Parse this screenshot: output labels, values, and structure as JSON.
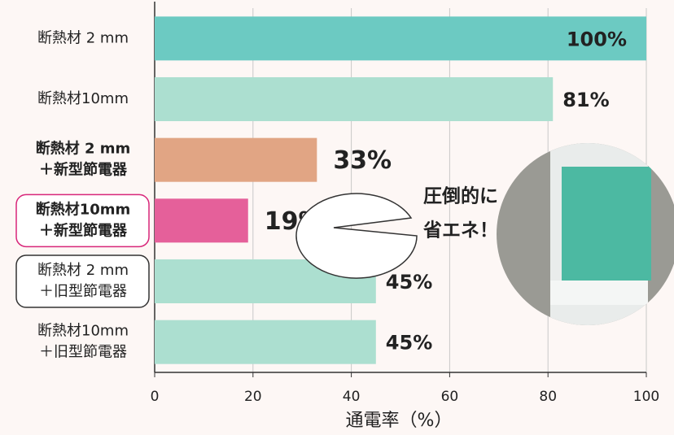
{
  "chart_data": {
    "type": "hbar",
    "categories": [
      [
        "断熱材 2 mm"
      ],
      [
        "断熱材10mm"
      ],
      [
        "断熱材 2 mm",
        "＋新型節電器"
      ],
      [
        "断熱材10mm",
        "＋新型節電器"
      ],
      [
        "断熱材 2 mm",
        "＋旧型節電器"
      ],
      [
        "断熱材10mm",
        "＋旧型節電器"
      ]
    ],
    "values": [
      100,
      81,
      33,
      19,
      45,
      45
    ],
    "value_labels": [
      "100%",
      "81%",
      "33%",
      "19%",
      "45%",
      "45%"
    ],
    "colors": [
      "#6ccac2",
      "#acdfd0",
      "#e1a584",
      "#e5609a",
      "#acdfd0",
      "#acdfd0"
    ],
    "label_colors": [
      "#222222",
      "#222222",
      "#d8267a",
      "#d8267a",
      "#222222",
      "#222222"
    ],
    "label_box_colors": [
      null,
      null,
      null,
      "#d8267a",
      "#333333",
      null
    ],
    "xlim": [
      0,
      100
    ],
    "xticks": [
      0,
      20,
      40,
      60,
      80,
      100
    ],
    "grid": true,
    "xlabel": "通電率（%）",
    "callout": [
      "圧倒的に",
      "省エネ！"
    ]
  }
}
